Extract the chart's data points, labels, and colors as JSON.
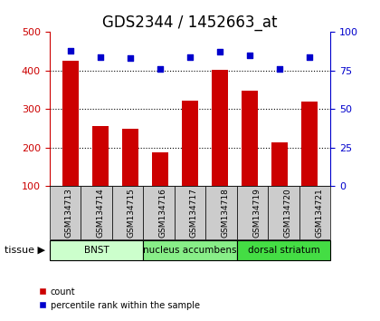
{
  "title": "GDS2344 / 1452663_at",
  "samples": [
    "GSM134713",
    "GSM134714",
    "GSM134715",
    "GSM134716",
    "GSM134717",
    "GSM134718",
    "GSM134719",
    "GSM134720",
    "GSM134721"
  ],
  "counts": [
    425,
    257,
    248,
    188,
    323,
    401,
    347,
    213,
    320
  ],
  "percentiles": [
    88,
    84,
    83,
    76,
    84,
    87,
    85,
    76,
    84
  ],
  "tissues": [
    {
      "label": "BNST",
      "start": 0,
      "end": 2,
      "color": "#ccffcc"
    },
    {
      "label": "nucleus accumbens",
      "start": 3,
      "end": 5,
      "color": "#88ee88"
    },
    {
      "label": "dorsal striatum",
      "start": 6,
      "end": 8,
      "color": "#44dd44"
    }
  ],
  "bar_color": "#cc0000",
  "dot_color": "#0000cc",
  "sample_box_color": "#cccccc",
  "ylim_left": [
    100,
    500
  ],
  "ylim_right": [
    0,
    100
  ],
  "yticks_left": [
    100,
    200,
    300,
    400,
    500
  ],
  "yticks_right": [
    0,
    25,
    50,
    75,
    100
  ],
  "grid_lines": [
    200,
    300,
    400
  ],
  "legend_count": "count",
  "legend_percentile": "percentile rank within the sample",
  "title_fontsize": 12,
  "axis_color_left": "#cc0000",
  "axis_color_right": "#0000cc"
}
